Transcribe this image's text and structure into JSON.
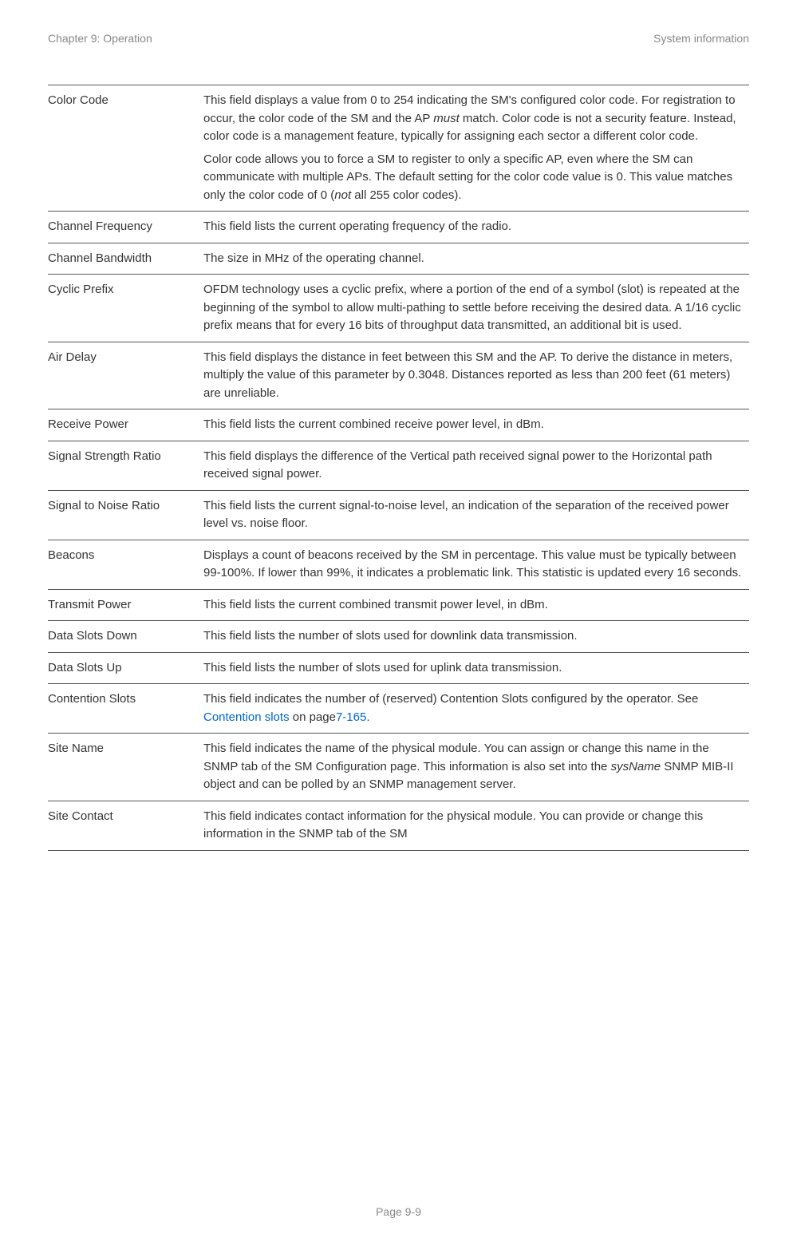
{
  "header": {
    "left": "Chapter 9:  Operation",
    "right": "System information"
  },
  "footer": "Page 9-9",
  "rows": [
    {
      "label": "Color Code",
      "paras": [
        [
          {
            "t": "This field displays a value from 0 to 254 indicating the SM's configured color code. For registration to occur, the color code of the SM and the AP "
          },
          {
            "t": "must",
            "em": true
          },
          {
            "t": " match. Color code is not a security feature. Instead, color code is a management feature, typically for assigning each sector a different color code."
          }
        ],
        [
          {
            "t": "Color code allows you to force a SM to register to only a specific AP, even where the SM can communicate with multiple APs. The default setting for the color code value is 0. This value matches only the color code of 0 ("
          },
          {
            "t": "not",
            "em": true
          },
          {
            "t": " all 255 color codes)."
          }
        ]
      ]
    },
    {
      "label": "Channel Frequency",
      "paras": [
        [
          {
            "t": "This field lists the current operating frequency of the radio."
          }
        ]
      ]
    },
    {
      "label": "Channel Bandwidth",
      "paras": [
        [
          {
            "t": "The size in MHz of the operating channel."
          }
        ]
      ]
    },
    {
      "label": "Cyclic Prefix",
      "paras": [
        [
          {
            "t": "OFDM technology uses a cyclic prefix, where a portion of the end of a symbol (slot) is repeated at the beginning of the symbol to allow multi-pathing to settle before receiving the desired data. A 1/16 cyclic prefix means that for every 16 bits of throughput data transmitted, an additional bit is used."
          }
        ]
      ]
    },
    {
      "label": "Air Delay",
      "paras": [
        [
          {
            "t": "This field displays the distance in feet between this SM and the AP. To derive the distance in meters, multiply the value of this parameter by 0.3048. Distances reported as less than 200 feet (61 meters) are unreliable."
          }
        ]
      ]
    },
    {
      "label": "Receive Power",
      "paras": [
        [
          {
            "t": "This field lists the current combined receive power level, in dBm."
          }
        ]
      ]
    },
    {
      "label": "Signal Strength Ratio",
      "paras": [
        [
          {
            "t": "This field displays the difference of the Vertical path received signal power to the Horizontal path received signal power."
          }
        ]
      ]
    },
    {
      "label": "Signal to Noise Ratio",
      "paras": [
        [
          {
            "t": "This field lists the current signal-to-noise level, an indication of the separation of the received power level vs. noise floor."
          }
        ]
      ]
    },
    {
      "label": "Beacons",
      "paras": [
        [
          {
            "t": "Displays a count of beacons received by the SM in percentage. This value must be typically between 99-100%. If lower than 99%, it indicates a problematic link. This statistic is updated every 16 seconds."
          }
        ]
      ]
    },
    {
      "label": "Transmit Power",
      "paras": [
        [
          {
            "t": "This field lists the current combined transmit power level, in dBm."
          }
        ]
      ]
    },
    {
      "label": "Data Slots Down",
      "paras": [
        [
          {
            "t": "This field lists the number of slots used for downlink data transmission."
          }
        ]
      ]
    },
    {
      "label": "Data Slots Up",
      "paras": [
        [
          {
            "t": "This field lists the number of slots used for uplink data transmission."
          }
        ]
      ]
    },
    {
      "label": "Contention Slots",
      "paras": [
        [
          {
            "t": "This field indicates the number of (reserved) Contention Slots configured by the operator. See "
          },
          {
            "t": "Contention slots",
            "link": true
          },
          {
            "t": " on page"
          },
          {
            "t": "7-165",
            "link": true
          },
          {
            "t": "."
          }
        ]
      ]
    },
    {
      "label": "Site Name",
      "paras": [
        [
          {
            "t": "This field indicates the name of the physical module. You can assign or change this name in the SNMP tab of the SM Configuration page. This information is also set into the "
          },
          {
            "t": "sysName",
            "em": true
          },
          {
            "t": " SNMP MIB-II object and can be polled by an SNMP management server."
          }
        ]
      ]
    },
    {
      "label": "Site Contact",
      "paras": [
        [
          {
            "t": "This field indicates contact information for the physical module. You can provide or change this information in the SNMP tab of the SM"
          }
        ]
      ]
    }
  ]
}
